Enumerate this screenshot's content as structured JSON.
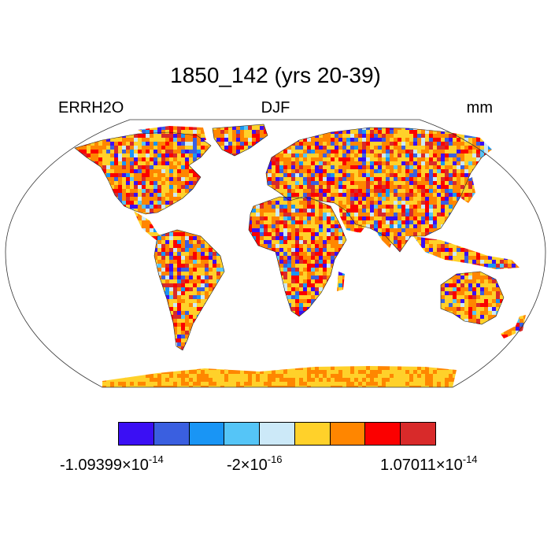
{
  "header": {
    "title": "1850_142 (yrs 20-39)",
    "left": "ERRH2O",
    "center": "DJF",
    "right": "mm"
  },
  "colorbar": {
    "colors": [
      "#3b0ff4",
      "#3a5fe0",
      "#1995f5",
      "#55c5f7",
      "#cce9f8",
      "#ffd12a",
      "#ff8600",
      "#fb0000",
      "#d82a2a"
    ],
    "labels": {
      "min": {
        "mantissa": "-1.09399",
        "times": "×",
        "base": "10",
        "exp": "-14"
      },
      "mid": {
        "mantissa": "-2",
        "times": "×",
        "base": "10",
        "exp": "-16"
      },
      "max": {
        "mantissa": "1.07011",
        "times": "×",
        "base": "10",
        "exp": "-14"
      }
    }
  },
  "chart_data": {
    "type": "heatmap",
    "title": "1850_142 (yrs 20-39)",
    "variable": "ERRH2O",
    "season": "DJF",
    "units": "mm",
    "projection": "Robinson",
    "value_range": [
      -1.09399e-14,
      1.07011e-14
    ],
    "colorbar_labels": [
      "-1.09399×10^-14",
      "-2×10^-16",
      "1.07011×10^-14"
    ]
  }
}
